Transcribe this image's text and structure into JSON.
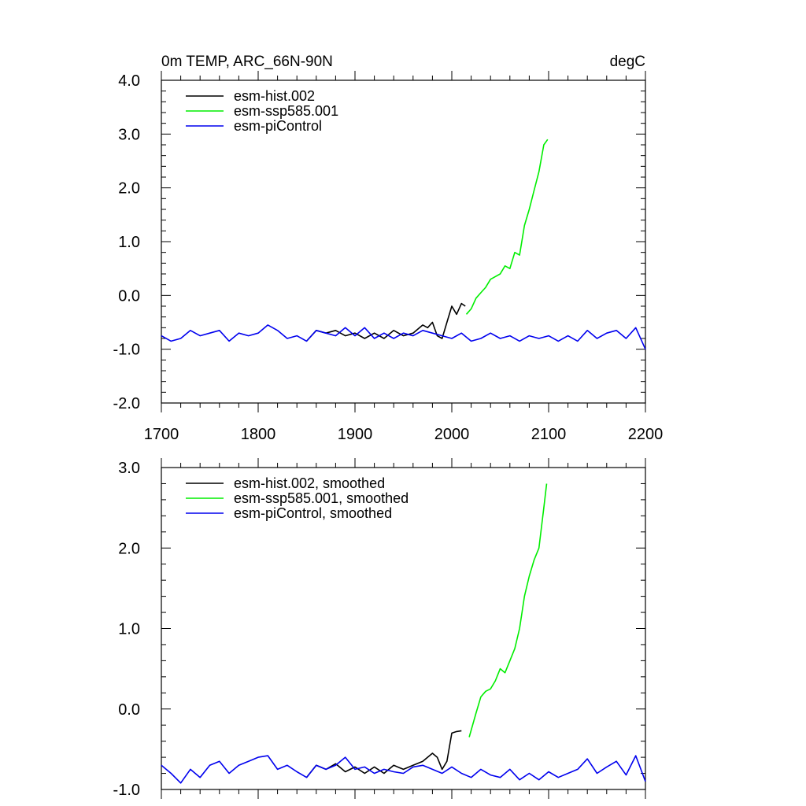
{
  "chart_data": [
    {
      "type": "line",
      "title": "0m TEMP, ARC_66N-90N",
      "units": "degC",
      "xlim": [
        1700,
        2200
      ],
      "ylim": [
        -2.0,
        4.0
      ],
      "xticks": [
        1700,
        1800,
        1900,
        2000,
        2100,
        2200
      ],
      "xtick_labels": [
        "1700",
        "1800",
        "1900",
        "2000",
        "2100",
        "2200"
      ],
      "yticks": [
        -2.0,
        -1.0,
        0.0,
        1.0,
        2.0,
        3.0,
        4.0
      ],
      "ytick_labels": [
        "-2.0",
        "-1.0",
        "0.0",
        "1.0",
        "2.0",
        "3.0",
        "4.0"
      ],
      "legend": "top-left",
      "series": [
        {
          "name": "esm-hist.002",
          "color": "#000000",
          "x": [
            1850,
            1860,
            1870,
            1880,
            1890,
            1900,
            1910,
            1920,
            1930,
            1940,
            1950,
            1960,
            1970,
            1975,
            1980,
            1985,
            1990,
            1995,
            2000,
            2005,
            2010,
            2014
          ],
          "y": [
            -0.85,
            -0.65,
            -0.7,
            -0.65,
            -0.75,
            -0.7,
            -0.8,
            -0.7,
            -0.8,
            -0.65,
            -0.75,
            -0.7,
            -0.55,
            -0.6,
            -0.5,
            -0.75,
            -0.8,
            -0.5,
            -0.2,
            -0.35,
            -0.15,
            -0.2
          ]
        },
        {
          "name": "esm-ssp585.001",
          "color": "#00ee00",
          "x": [
            2015,
            2020,
            2025,
            2030,
            2035,
            2040,
            2045,
            2050,
            2055,
            2060,
            2065,
            2070,
            2075,
            2080,
            2085,
            2090,
            2095,
            2099
          ],
          "y": [
            -0.35,
            -0.25,
            -0.05,
            0.05,
            0.15,
            0.3,
            0.35,
            0.4,
            0.55,
            0.5,
            0.8,
            0.75,
            1.3,
            1.6,
            1.95,
            2.3,
            2.8,
            2.9
          ]
        },
        {
          "name": "esm-piControl",
          "color": "#0000ee",
          "x": [
            1700,
            1710,
            1720,
            1730,
            1740,
            1750,
            1760,
            1770,
            1780,
            1790,
            1800,
            1810,
            1820,
            1830,
            1840,
            1850,
            1860,
            1870,
            1880,
            1890,
            1900,
            1910,
            1920,
            1930,
            1940,
            1950,
            1960,
            1970,
            1980,
            1990,
            2000,
            2010,
            2020,
            2030,
            2040,
            2050,
            2060,
            2070,
            2080,
            2090,
            2100,
            2110,
            2120,
            2130,
            2140,
            2150,
            2160,
            2170,
            2180,
            2190,
            2200
          ],
          "y": [
            -0.75,
            -0.85,
            -0.8,
            -0.65,
            -0.75,
            -0.7,
            -0.65,
            -0.85,
            -0.7,
            -0.75,
            -0.7,
            -0.55,
            -0.65,
            -0.8,
            -0.75,
            -0.85,
            -0.65,
            -0.7,
            -0.75,
            -0.6,
            -0.75,
            -0.6,
            -0.8,
            -0.7,
            -0.8,
            -0.7,
            -0.75,
            -0.65,
            -0.7,
            -0.75,
            -0.8,
            -0.7,
            -0.85,
            -0.8,
            -0.7,
            -0.8,
            -0.75,
            -0.85,
            -0.75,
            -0.8,
            -0.75,
            -0.85,
            -0.75,
            -0.85,
            -0.65,
            -0.8,
            -0.7,
            -0.65,
            -0.8,
            -0.6,
            -1.0
          ]
        }
      ]
    },
    {
      "type": "line",
      "xlim": [
        1700,
        2200
      ],
      "ylim": [
        -1.0,
        3.0
      ],
      "xticks": [
        1700,
        1800,
        1900,
        2000,
        2100,
        2200
      ],
      "yticks": [
        -1.0,
        0.0,
        1.0,
        2.0,
        3.0
      ],
      "ytick_labels": [
        "-1.0",
        "0.0",
        "1.0",
        "2.0",
        "3.0"
      ],
      "legend": "top-left",
      "series": [
        {
          "name": "esm-hist.002, smoothed",
          "color": "#000000",
          "x": [
            1850,
            1860,
            1870,
            1880,
            1890,
            1900,
            1910,
            1920,
            1930,
            1940,
            1950,
            1960,
            1970,
            1980,
            1985,
            1990,
            1995,
            2000,
            2005,
            2010
          ],
          "y": [
            -0.85,
            -0.7,
            -0.75,
            -0.68,
            -0.78,
            -0.72,
            -0.8,
            -0.72,
            -0.8,
            -0.7,
            -0.75,
            -0.7,
            -0.65,
            -0.55,
            -0.6,
            -0.75,
            -0.65,
            -0.3,
            -0.28,
            -0.27
          ]
        },
        {
          "name": "esm-ssp585.001, smoothed",
          "color": "#00ee00",
          "x": [
            2018,
            2025,
            2030,
            2035,
            2040,
            2045,
            2050,
            2055,
            2060,
            2065,
            2070,
            2075,
            2080,
            2085,
            2090,
            2095,
            2098
          ],
          "y": [
            -0.35,
            -0.05,
            0.15,
            0.22,
            0.25,
            0.35,
            0.5,
            0.45,
            0.6,
            0.75,
            1.0,
            1.4,
            1.65,
            1.85,
            2.0,
            2.5,
            2.8
          ]
        },
        {
          "name": "esm-piControl, smoothed",
          "color": "#0000ee",
          "x": [
            1700,
            1710,
            1720,
            1730,
            1740,
            1750,
            1760,
            1770,
            1780,
            1790,
            1800,
            1810,
            1820,
            1830,
            1840,
            1850,
            1860,
            1870,
            1880,
            1890,
            1900,
            1910,
            1920,
            1930,
            1940,
            1950,
            1960,
            1970,
            1980,
            1990,
            2000,
            2010,
            2020,
            2030,
            2040,
            2050,
            2060,
            2070,
            2080,
            2090,
            2100,
            2110,
            2120,
            2130,
            2140,
            2150,
            2160,
            2170,
            2180,
            2190,
            2200
          ],
          "y": [
            -0.7,
            -0.8,
            -0.92,
            -0.75,
            -0.85,
            -0.7,
            -0.65,
            -0.8,
            -0.7,
            -0.65,
            -0.6,
            -0.58,
            -0.75,
            -0.7,
            -0.78,
            -0.85,
            -0.7,
            -0.75,
            -0.7,
            -0.6,
            -0.75,
            -0.72,
            -0.8,
            -0.75,
            -0.78,
            -0.8,
            -0.72,
            -0.7,
            -0.75,
            -0.8,
            -0.72,
            -0.8,
            -0.85,
            -0.75,
            -0.82,
            -0.85,
            -0.75,
            -0.88,
            -0.8,
            -0.88,
            -0.78,
            -0.85,
            -0.8,
            -0.75,
            -0.62,
            -0.8,
            -0.72,
            -0.65,
            -0.82,
            -0.58,
            -0.9
          ]
        }
      ]
    }
  ]
}
